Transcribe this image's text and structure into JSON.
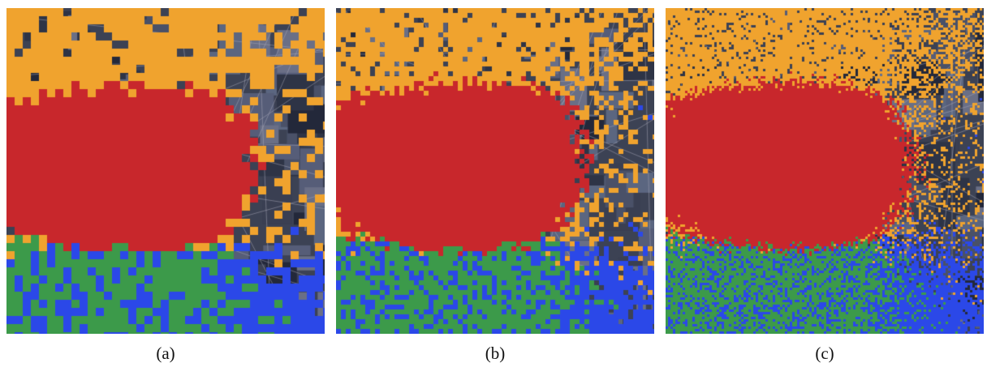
{
  "figure": {
    "panels": [
      {
        "id": "a",
        "caption": "(a)",
        "cell_size": 10,
        "seed": 11
      },
      {
        "id": "b",
        "caption": "(b)",
        "cell_size": 6,
        "seed": 23
      },
      {
        "id": "c",
        "caption": "(c)",
        "cell_size": 3,
        "seed": 37
      }
    ]
  },
  "colors": {
    "red": "#c8272c",
    "orange": "#f0a32e",
    "blue": "#2b48e8",
    "green": "#3c9a4a",
    "background_imagery": "#3c4254"
  }
}
